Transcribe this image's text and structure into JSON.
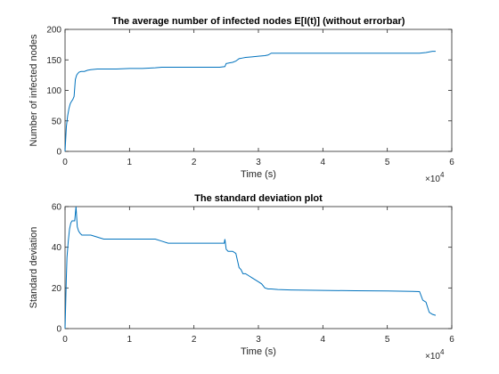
{
  "chart_data": [
    {
      "type": "line",
      "title": "The average number of infected nodes E[I(t)] (without errorbar)",
      "xlabel": "Time (s)",
      "ylabel": "Number of infected nodes",
      "x_exponent_label": "×10",
      "x_exponent_power": "4",
      "xlim": [
        0,
        60000
      ],
      "ylim": [
        0,
        200
      ],
      "x_ticks": [
        0,
        10000,
        20000,
        30000,
        40000,
        50000,
        60000
      ],
      "x_tick_labels": [
        "0",
        "1",
        "2",
        "3",
        "4",
        "5",
        "6"
      ],
      "y_ticks": [
        0,
        50,
        100,
        150,
        200
      ],
      "y_tick_labels": [
        "0",
        "50",
        "100",
        "150",
        "200"
      ],
      "grid": false,
      "color": "#0072bd",
      "series": [
        {
          "x": [
            0,
            100,
            200,
            400,
            600,
            800,
            1000,
            1200,
            1400,
            1600,
            1800,
            2000,
            2200,
            2500,
            3000,
            3500,
            4000,
            5000,
            6000,
            8000,
            10000,
            12000,
            14000,
            15000,
            16000,
            18000,
            20000,
            22000,
            24000,
            24800,
            25000,
            25500,
            26000,
            26500,
            27000,
            27500,
            28000,
            29000,
            30000,
            31000,
            31500,
            32000,
            33000,
            35000,
            40000,
            45000,
            50000,
            55000,
            56000,
            57000,
            57500
          ],
          "y": [
            0,
            20,
            40,
            58,
            70,
            78,
            82,
            85,
            90,
            118,
            125,
            128,
            130,
            131,
            131,
            133,
            134,
            135,
            135,
            135,
            136,
            136,
            137,
            138,
            138,
            138,
            138,
            138,
            138,
            139,
            144,
            145,
            146,
            148,
            152,
            153,
            154,
            155,
            156,
            157,
            158,
            161,
            161,
            161,
            161,
            161,
            161,
            161,
            162,
            164,
            164
          ]
        }
      ]
    },
    {
      "type": "line",
      "title": "The standard deviation plot",
      "xlabel": "Time (s)",
      "ylabel": "Standard deviation",
      "x_exponent_label": "×10",
      "x_exponent_power": "4",
      "xlim": [
        0,
        60000
      ],
      "ylim": [
        0,
        60
      ],
      "x_ticks": [
        0,
        10000,
        20000,
        30000,
        40000,
        50000,
        60000
      ],
      "x_tick_labels": [
        "0",
        "1",
        "2",
        "3",
        "4",
        "5",
        "6"
      ],
      "y_ticks": [
        0,
        20,
        40,
        60
      ],
      "y_tick_labels": [
        "0",
        "20",
        "40",
        "60"
      ],
      "grid": false,
      "color": "#0072bd",
      "series": [
        {
          "x": [
            0,
            100,
            200,
            300,
            500,
            700,
            900,
            1100,
            1300,
            1500,
            1700,
            1900,
            2100,
            2300,
            2600,
            3000,
            3500,
            4000,
            5000,
            6000,
            10000,
            14000,
            15000,
            16000,
            20000,
            24000,
            24700,
            24800,
            25000,
            25300,
            25700,
            26000,
            26500,
            27000,
            27300,
            27600,
            28000,
            28500,
            29000,
            29500,
            30000,
            30500,
            31000,
            31500,
            32000,
            33000,
            35000,
            40000,
            45000,
            50000,
            54000,
            55000,
            55500,
            56000,
            56500,
            57000,
            57500
          ],
          "y": [
            0,
            12,
            25,
            35,
            43,
            49,
            52,
            53,
            53,
            53,
            60,
            50,
            48,
            47,
            46,
            46,
            46,
            46,
            45,
            44,
            44,
            44,
            43,
            42,
            42,
            42,
            42,
            44,
            39,
            38,
            38,
            38,
            37,
            30,
            29,
            27,
            27,
            26,
            25,
            24,
            23,
            22,
            20,
            19.5,
            19.5,
            19.2,
            19,
            18.8,
            18.6,
            18.5,
            18.3,
            18.2,
            14,
            13,
            8,
            7,
            6.5
          ]
        }
      ]
    }
  ]
}
